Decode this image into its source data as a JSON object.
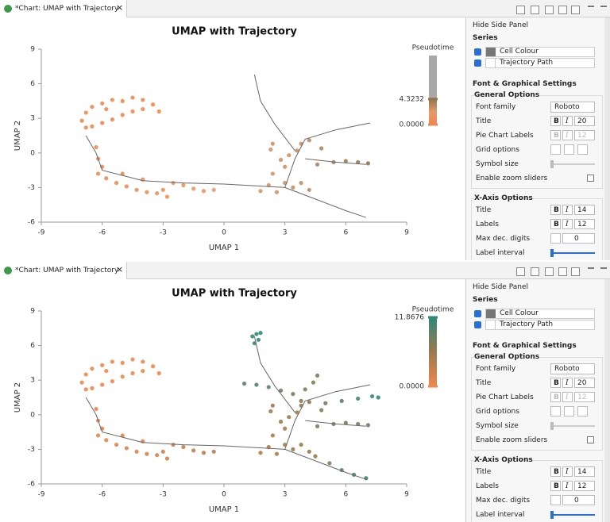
{
  "tabs": [
    {
      "title": "*Chart: UMAP with Trajectory",
      "close": "×"
    },
    {
      "title": "*Chart: UMAP with Trajectory",
      "close": "×"
    }
  ],
  "chart_data": [
    {
      "type": "scatter",
      "title": "UMAP with Trajectory",
      "x_label": "UMAP 1",
      "y_label": "UMAP 2",
      "xlim": [
        -9,
        9
      ],
      "xticks": [
        -9,
        -6,
        -3,
        0,
        3,
        6,
        9
      ],
      "ylim": [
        -6,
        9
      ],
      "yticks": [
        -6,
        -3,
        0,
        3,
        6,
        9
      ],
      "grid": false,
      "colorbar": {
        "title": "Pseudotime",
        "colors": [
          "#f0874e",
          "#e39a6a",
          "#8f7550"
        ],
        "above_color": "#a8a8a8",
        "lim": [
          0,
          4.3232
        ],
        "ticks": [
          {
            "value": 4.3232,
            "label": "4.3232"
          },
          {
            "value": 0,
            "label": "0.0000"
          }
        ]
      },
      "series": [
        {
          "name": "Cell Colour",
          "x": [
            -7,
            -6.8,
            -6.5,
            -6,
            -5.5,
            -5,
            -4.5,
            -4,
            -3.5,
            -3.2,
            -6.5,
            -6,
            -5.5,
            -5,
            -4.5,
            -4,
            -6.8,
            -5.8,
            -6.3,
            -6.2,
            -6,
            -6.2,
            -5.8,
            -5.3,
            -4.8,
            -4.3,
            -3.8,
            -3.3,
            -3,
            -2.5,
            -2,
            -1.5,
            -1,
            -0.5,
            -5,
            -4,
            -2.8,
            1.8,
            2.2,
            2.6,
            3,
            3.4,
            3.8,
            4.2,
            2.4,
            3,
            2.8,
            3.2,
            3.6,
            2.3,
            2.4,
            3.8,
            4.2,
            4.8,
            4.6,
            5.4,
            6,
            6.6,
            7.1
          ],
          "y": [
            2.8,
            3.5,
            4,
            4.3,
            4.6,
            4.5,
            4.8,
            4.6,
            4.2,
            3.6,
            2.3,
            2.6,
            2.9,
            3.3,
            3.6,
            3.8,
            2.2,
            3.8,
            0.5,
            -0.5,
            -1.2,
            -1.8,
            -2.2,
            -2.6,
            -2.9,
            -3.2,
            -3.4,
            -3.5,
            -3.2,
            -2.6,
            -2.8,
            -3.1,
            -3.3,
            -3.2,
            -1.8,
            -2.3,
            -3.8,
            -3.3,
            -2.8,
            -3.4,
            -2.6,
            -3,
            -2.6,
            -3.2,
            -1.8,
            -1.2,
            -0.6,
            -0.2,
            0.2,
            0.3,
            0.8,
            0.8,
            1.1,
            0.4,
            -1,
            -0.8,
            -0.7,
            -0.8,
            -0.9
          ],
          "pseudotime": [
            0.1,
            0.1,
            0.1,
            0.1,
            0.1,
            0.1,
            0.1,
            0.1,
            0.1,
            0.1,
            0.1,
            0.1,
            0.1,
            0.1,
            0.1,
            0.1,
            0.1,
            0.1,
            0.2,
            0.2,
            0.3,
            0.3,
            0.4,
            0.5,
            0.6,
            0.7,
            0.8,
            0.9,
            1,
            1.2,
            1.4,
            1.6,
            1.8,
            2,
            0.5,
            0.7,
            1,
            2.4,
            2.5,
            2.6,
            2.7,
            2.8,
            2.9,
            3,
            2.5,
            2.6,
            2.7,
            2.6,
            2.8,
            2.6,
            2.7,
            2.9,
            3.1,
            3.4,
            3.5,
            3.7,
            3.9,
            4.1,
            4.3
          ]
        },
        {
          "name": "Trajectory Path",
          "color": "#666666",
          "x": [
            -6.8,
            -6.3,
            -6,
            -4,
            -2,
            0,
            2,
            3,
            4.5,
            6,
            7,
            null,
            3,
            3.5,
            4,
            5.5,
            7.2,
            null,
            3.5,
            2.5,
            1.8,
            1.5,
            null,
            4,
            5.5,
            7
          ],
          "y": [
            1.5,
            0,
            -1.5,
            -2.4,
            -2.6,
            -2.7,
            -2.9,
            -3,
            -4,
            -5,
            -5.6,
            null,
            -3,
            -0.5,
            1.2,
            2,
            2.6,
            null,
            0.2,
            2.5,
            4.5,
            6.8,
            null,
            -0.5,
            -0.8,
            -1
          ]
        }
      ]
    },
    {
      "type": "scatter",
      "title": "UMAP with Trajectory",
      "x_label": "UMAP 1",
      "y_label": "UMAP 2",
      "xlim": [
        -9,
        9
      ],
      "xticks": [
        -9,
        -6,
        -3,
        0,
        3,
        6,
        9
      ],
      "ylim": [
        -6,
        9
      ],
      "yticks": [
        -6,
        -3,
        0,
        3,
        6,
        9
      ],
      "grid": false,
      "colorbar": {
        "title": "Pseudotime",
        "colors": [
          "#f0874e",
          "#9a7a4e",
          "#2e8a7a"
        ],
        "lim": [
          0,
          11.8676
        ],
        "ticks": [
          {
            "value": 11.8676,
            "label": "11.8676"
          },
          {
            "value": 0,
            "label": "0.0000"
          }
        ]
      },
      "series": [
        {
          "name": "Cell Colour",
          "x": [
            -7,
            -6.8,
            -6.5,
            -6,
            -5.5,
            -5,
            -4.5,
            -4,
            -3.5,
            -3.2,
            -6.5,
            -6,
            -5.5,
            -5,
            -4.5,
            -4,
            -6.8,
            -5.8,
            -6.3,
            -6.2,
            -6,
            -6.2,
            -5.8,
            -5.3,
            -4.8,
            -4.3,
            -3.8,
            -3.3,
            -3,
            -2.5,
            -2,
            -1.5,
            -1,
            -0.5,
            -5,
            -4,
            -2.8,
            1.8,
            2.2,
            2.6,
            3,
            3.4,
            3.8,
            4.2,
            2.4,
            3,
            2.8,
            3.2,
            3.6,
            2.3,
            2.4,
            3.8,
            4.2,
            4.8,
            4.6,
            5.4,
            6,
            6.6,
            7.1,
            1.4,
            1.6,
            1.7,
            1.5,
            1.8,
            1,
            1.6,
            2.2,
            2.8,
            3.4,
            4,
            4.4,
            4.6,
            3.8,
            5,
            5.8,
            6.6,
            7.3,
            7.6,
            4.5,
            5.2,
            5.8,
            6.4,
            7
          ],
          "y": [
            2.8,
            3.5,
            4,
            4.3,
            4.6,
            4.5,
            4.8,
            4.6,
            4.2,
            3.6,
            2.3,
            2.6,
            2.9,
            3.3,
            3.6,
            3.8,
            2.2,
            3.8,
            0.5,
            -0.5,
            -1.2,
            -1.8,
            -2.2,
            -2.6,
            -2.9,
            -3.2,
            -3.4,
            -3.5,
            -3.2,
            -2.6,
            -2.8,
            -3.1,
            -3.3,
            -3.2,
            -1.8,
            -2.3,
            -3.8,
            -3.3,
            -2.8,
            -3.4,
            -2.6,
            -3,
            -2.6,
            -3.2,
            -1.8,
            -1.2,
            -0.6,
            -0.2,
            0.2,
            0.3,
            0.8,
            0.8,
            1.1,
            0.4,
            -1,
            -0.8,
            -0.7,
            -0.8,
            -0.9,
            6.8,
            7,
            6.5,
            6.2,
            7.1,
            2.7,
            2.6,
            2.4,
            2.1,
            1.8,
            2.2,
            2.8,
            3.4,
            1.2,
            1,
            1.2,
            1.4,
            1.6,
            1.5,
            -3.6,
            -4.2,
            -4.8,
            -5.2,
            -5.5
          ],
          "pseudotime": [
            0.2,
            0.2,
            0.2,
            0.2,
            0.2,
            0.2,
            0.2,
            0.2,
            0.2,
            0.2,
            0.2,
            0.2,
            0.2,
            0.2,
            0.2,
            0.2,
            0.2,
            0.2,
            0.4,
            0.5,
            0.6,
            0.7,
            0.9,
            1.1,
            1.3,
            1.5,
            1.7,
            1.9,
            2.1,
            2.5,
            2.9,
            3.3,
            3.7,
            4.1,
            1.1,
            1.5,
            2.1,
            4.6,
            4.8,
            5,
            5.2,
            5.4,
            5.6,
            5.8,
            5,
            5.2,
            5.4,
            5.3,
            5.6,
            5.4,
            5.6,
            6,
            6.4,
            7,
            7.2,
            7.6,
            8,
            8.4,
            8.8,
            11.5,
            11.8,
            11.6,
            11.3,
            11.8,
            10,
            9.5,
            9,
            8.5,
            8,
            7.5,
            7,
            7.3,
            7,
            8,
            9,
            10.5,
            11.5,
            11.8,
            6,
            7.5,
            9,
            10.5,
            11.5
          ]
        },
        {
          "name": "Trajectory Path",
          "color": "#666666",
          "x": [
            -6.8,
            -6.3,
            -6,
            -4,
            -2,
            0,
            2,
            3,
            4.5,
            6,
            7,
            null,
            3,
            3.5,
            4,
            5.5,
            7.2,
            null,
            3.5,
            2.5,
            1.8,
            1.5,
            null,
            4,
            5.5,
            7
          ],
          "y": [
            1.5,
            0,
            -1.5,
            -2.4,
            -2.6,
            -2.7,
            -2.9,
            -3,
            -4,
            -5,
            -5.6,
            null,
            -3,
            -0.5,
            1.2,
            2,
            2.6,
            null,
            0.2,
            2.5,
            4.5,
            6.8,
            null,
            -0.5,
            -0.8,
            -1
          ]
        }
      ]
    }
  ],
  "side_panel": {
    "hide": "Hide Side Panel",
    "series_header": "Series",
    "settings_header": "Font & Graphical Settings",
    "general_header": "General Options",
    "rows": [
      {
        "label": "Font family",
        "value": "Roboto"
      },
      {
        "label": "Title",
        "value": 20
      },
      {
        "label": "Pie Chart Labels",
        "value": 12
      },
      {
        "label": "Grid options"
      },
      {
        "label": "Symbol size"
      },
      {
        "label": "Enable zoom sliders"
      }
    ],
    "x_axis_header": "X-Axis Options",
    "x_rows": [
      {
        "label": "Title",
        "value": 14
      },
      {
        "label": "Labels",
        "value": 12
      },
      {
        "label": "Max dec. digits",
        "value": 0
      },
      {
        "label": "Label interval"
      }
    ],
    "bold": "B",
    "italic": "I"
  }
}
